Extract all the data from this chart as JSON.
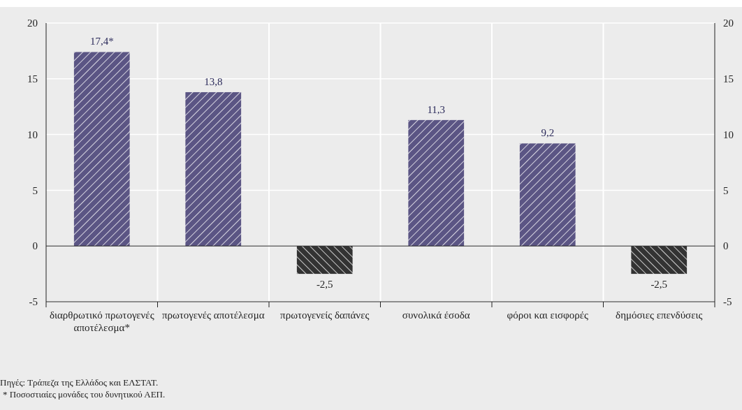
{
  "chart_data": {
    "type": "bar",
    "categories": [
      "διαρθρωτικό πρωτογενές αποτέλεσμα*",
      "πρωτογενές αποτέλεσμα",
      "πρωτογενείς δαπάνες",
      "συνολικά έσοδα",
      "φόροι και εισφορές",
      "δημόσιες επενδύσεις"
    ],
    "values": [
      17.4,
      13.8,
      -2.5,
      11.3,
      9.2,
      -2.5
    ],
    "colors": [
      "#5b5584",
      "#5b5584",
      "#333333",
      "#5b5584",
      "#5b5584",
      "#333333"
    ],
    "value_labels": [
      "17,4*",
      "13,8",
      "-2,5",
      "11,3",
      "9,2",
      "-2,5"
    ],
    "ylim": [
      -5,
      20
    ],
    "yticks": [
      -5,
      0,
      5,
      10,
      15,
      20
    ],
    "y2lim": [
      -5,
      20
    ],
    "y2ticks": [
      -5,
      0,
      5,
      10,
      15,
      20
    ],
    "grid": true,
    "annotations": [
      "Πηγές: Τράπεζα της Ελλάδος και ΕΛΣΤΑΤ.",
      "* Ποσοστιαίες μονάδες του δυνητικού ΑΕΠ."
    ]
  }
}
